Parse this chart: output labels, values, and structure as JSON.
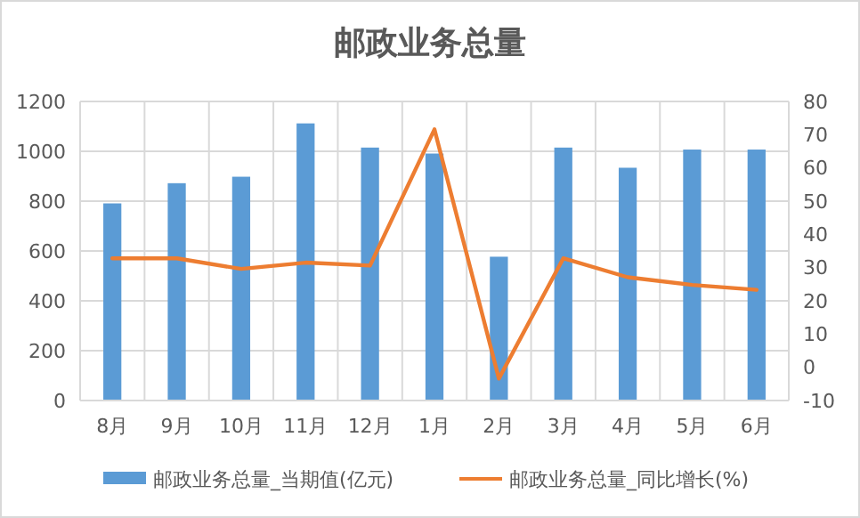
{
  "chart_data": {
    "type": "bar",
    "title": "邮政业务总量",
    "categories": [
      "8月",
      "9月",
      "10月",
      "11月",
      "12月",
      "1月",
      "2月",
      "3月",
      "4月",
      "5月",
      "6月"
    ],
    "series": [
      {
        "name": "邮政业务总量_当期值(亿元)",
        "color": "#5b9bd5",
        "values": [
          791,
          872,
          898,
          1112,
          1015,
          991,
          577,
          1015,
          934,
          1007,
          1007
        ]
      },
      {
        "name": "邮政业务总量_同比增长(%)",
        "type": "line",
        "axis": "y2",
        "color": "#ed7d31",
        "values": [
          32.8,
          32.8,
          29.6,
          31.5,
          30.6,
          71.6,
          -3.4,
          32.8,
          27.1,
          24.8,
          23.3
        ]
      }
    ],
    "ylim": [
      0,
      1200
    ],
    "yticks": [
      0,
      200,
      400,
      600,
      800,
      1000,
      1200
    ],
    "y2lim": [
      -10,
      80
    ],
    "y2ticks": [
      -10,
      0,
      10,
      20,
      30,
      40,
      50,
      60,
      70,
      80
    ],
    "grid": true,
    "legend": "bottom"
  }
}
